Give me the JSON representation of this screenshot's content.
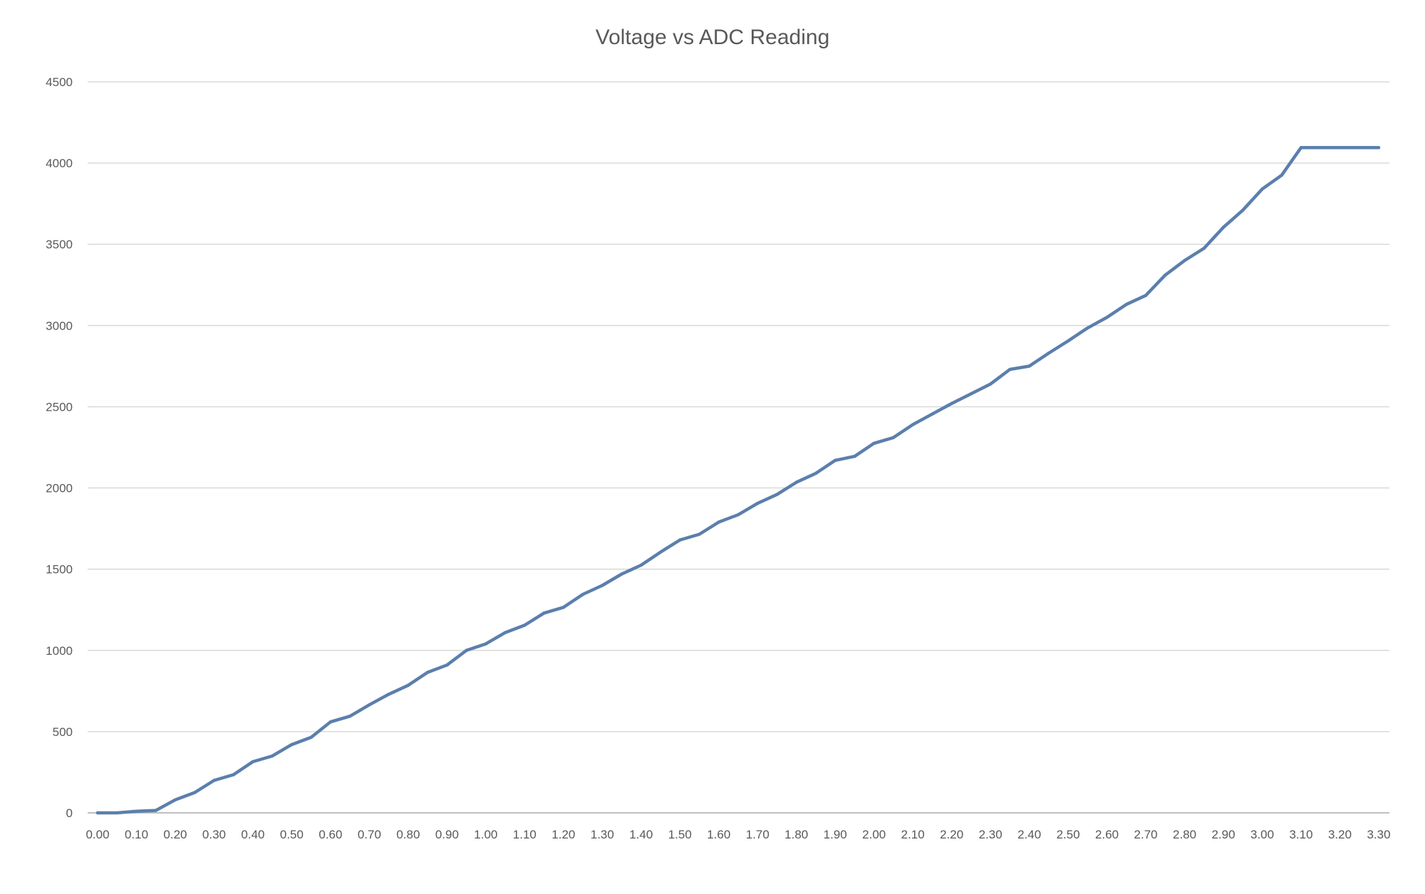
{
  "chart_data": {
    "type": "line",
    "title": "Voltage vs ADC Reading",
    "xlabel": "",
    "ylabel": "",
    "ylim": [
      0,
      4500
    ],
    "yticks": [
      "0",
      "500",
      "1000",
      "1500",
      "2000",
      "2500",
      "3000",
      "3500",
      "4000",
      "4500"
    ],
    "xticks": [
      "0.00",
      "0.10",
      "0.20",
      "0.30",
      "0.40",
      "0.50",
      "0.60",
      "0.70",
      "0.80",
      "0.90",
      "1.00",
      "1.10",
      "1.20",
      "1.30",
      "1.40",
      "1.50",
      "1.60",
      "1.70",
      "1.80",
      "1.90",
      "2.00",
      "2.10",
      "2.20",
      "2.30",
      "2.40",
      "2.50",
      "2.60",
      "2.70",
      "2.80",
      "2.90",
      "3.00",
      "3.10",
      "3.20",
      "3.30"
    ],
    "grid": true,
    "legend": "none",
    "line_color": "#5b7fad",
    "x": [
      0.0,
      0.05,
      0.1,
      0.15,
      0.2,
      0.25,
      0.3,
      0.35,
      0.4,
      0.45,
      0.5,
      0.55,
      0.6,
      0.65,
      0.7,
      0.75,
      0.8,
      0.85,
      0.9,
      0.95,
      1.0,
      1.05,
      1.1,
      1.15,
      1.2,
      1.25,
      1.3,
      1.35,
      1.4,
      1.45,
      1.5,
      1.55,
      1.6,
      1.65,
      1.7,
      1.75,
      1.8,
      1.85,
      1.9,
      1.95,
      2.0,
      2.05,
      2.1,
      2.15,
      2.2,
      2.25,
      2.3,
      2.35,
      2.4,
      2.45,
      2.5,
      2.55,
      2.6,
      2.65,
      2.7,
      2.75,
      2.8,
      2.85,
      2.9,
      2.95,
      3.0,
      3.05,
      3.1,
      3.15,
      3.2,
      3.25,
      3.3
    ],
    "values": [
      0,
      0,
      10,
      15,
      80,
      125,
      200,
      235,
      315,
      350,
      420,
      465,
      560,
      595,
      665,
      730,
      785,
      865,
      910,
      1000,
      1040,
      1110,
      1155,
      1230,
      1265,
      1345,
      1400,
      1470,
      1525,
      1605,
      1680,
      1715,
      1790,
      1835,
      1905,
      1960,
      2035,
      2090,
      2170,
      2195,
      2275,
      2310,
      2390,
      2455,
      2520,
      2580,
      2640,
      2730,
      2750,
      2830,
      2905,
      2985,
      3050,
      3130,
      3185,
      3310,
      3400,
      3475,
      3605,
      3710,
      3840,
      3925,
      4095,
      4095,
      4095,
      4095,
      4095
    ]
  }
}
